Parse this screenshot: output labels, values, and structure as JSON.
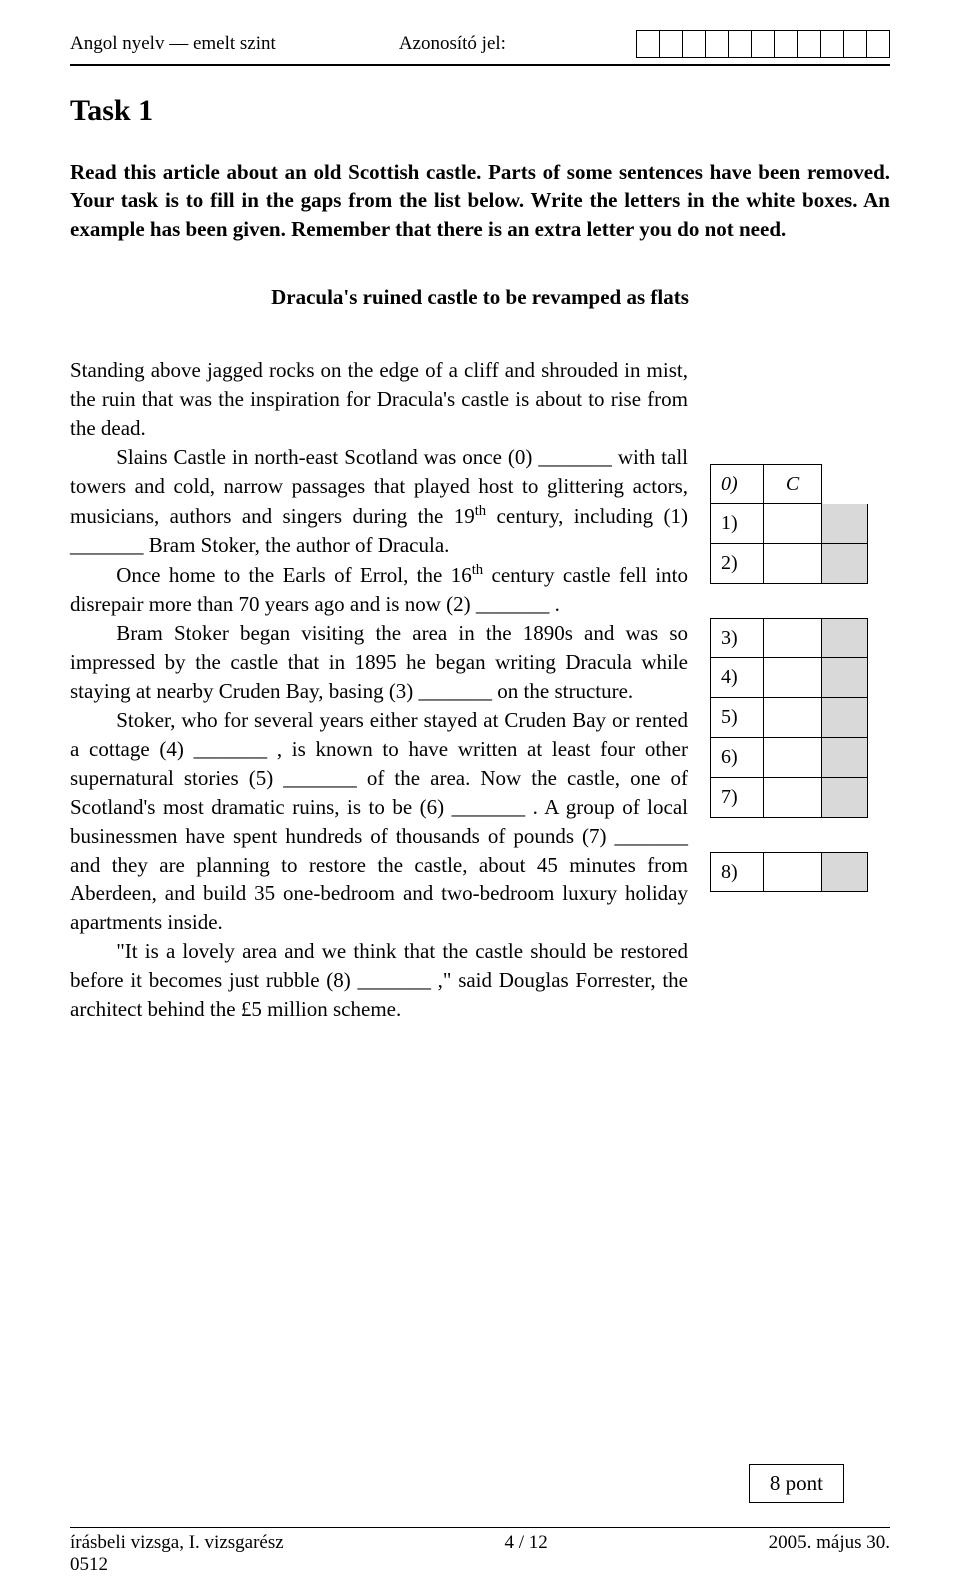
{
  "header": {
    "left": "Angol nyelv — emelt szint",
    "center_label": "Azonosító jel:",
    "id_box_count": 11
  },
  "task": {
    "title": "Task 1",
    "instructions": "Read this article about an old Scottish castle. Parts of some sentences have been removed. Your task is to fill in the gaps from the list below. Write the letters in the white boxes. An example has been given. Remember that there is an extra letter you do not need.",
    "article_title": "Dracula's ruined castle to be revamped as flats"
  },
  "article": {
    "p1": "Standing above jagged rocks on the edge of a cliff and shrouded in mist, the ruin that was the inspiration for Dracula's castle is about to rise from the dead.",
    "p2a": "Slains Castle in north-east Scotland was once  (0) _______ with tall towers and cold, narrow passages that played host to glittering actors, musicians, authors and singers during the 19",
    "p2_sup": "th",
    "p2b": " century, including  (1) _______ Bram Stoker, the author of Dracula.",
    "p3a": "Once home to the Earls of Errol, the 16",
    "p3_sup": "th",
    "p3b": " century castle fell into disrepair more than 70 years ago and is now  (2) _______ .",
    "p4": "Bram Stoker began visiting the area in the 1890s and was so impressed by the castle that in 1895 he began writing Dracula while staying at nearby Cruden Bay, basing (3) _______ on the structure.",
    "p5": "Stoker, who for several years either stayed at Cruden Bay or rented a cottage  (4) _______ , is known to have written at least four other supernatural stories (5) _______ of the area. Now the castle, one of Scotland's most dramatic ruins, is to be  (6) _______ . A group of local businessmen have spent hundreds of thousands of pounds (7) _______ and they are planning to restore the castle, about 45 minutes from Aberdeen, and build 35 one-bedroom and two-bedroom luxury holiday apartments inside.",
    "p6": "\"It is a lovely area and we think that the castle should be restored before it becomes just rubble (8) _______ ,\" said Douglas Forrester, the architect behind the £5 million scheme."
  },
  "answers": {
    "example": {
      "label": "0)",
      "value": "C"
    },
    "group1": [
      {
        "label": "1)"
      },
      {
        "label": "2)"
      }
    ],
    "group2": [
      {
        "label": "3)"
      },
      {
        "label": "4)"
      },
      {
        "label": "5)"
      },
      {
        "label": "6)"
      },
      {
        "label": "7)"
      }
    ],
    "group3": [
      {
        "label": "8)"
      }
    ]
  },
  "points_box": "8 pont",
  "footer": {
    "left_line1": "írásbeli vizsga, I. vizsgarész",
    "left_line2": "0512",
    "center": "4 / 12",
    "right": "2005. május 30."
  }
}
